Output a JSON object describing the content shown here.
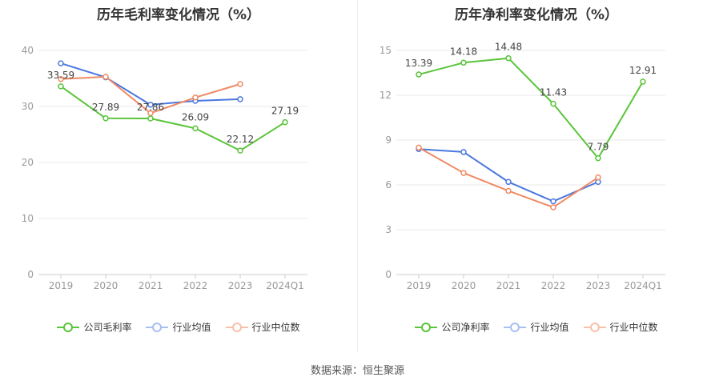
{
  "source_label": "数据来源：恒生聚源",
  "chart_data": [
    {
      "type": "line",
      "title": "历年毛利率变化情况（%）",
      "categories": [
        "2019",
        "2020",
        "2021",
        "2022",
        "2023",
        "2024Q1"
      ],
      "ylim": [
        0,
        40
      ],
      "yticks": [
        0,
        10,
        20,
        30,
        40
      ],
      "grid": true,
      "legend_position": "bottom",
      "series": [
        {
          "name": "公司毛利率",
          "color": "#5ac43a",
          "values": [
            33.59,
            27.89,
            27.86,
            26.09,
            22.12,
            27.19
          ],
          "labels": [
            "33.59",
            "27.89",
            "27.86",
            "26.09",
            "22.12",
            "27.19"
          ]
        },
        {
          "name": "行业均值",
          "color": "#4a78e0",
          "values": [
            37.7,
            35.2,
            30.3,
            31.0,
            31.3,
            null
          ]
        },
        {
          "name": "行业中位数",
          "color": "#f08a64",
          "values": [
            34.9,
            35.3,
            28.8,
            31.6,
            34.0,
            null
          ]
        }
      ]
    },
    {
      "type": "line",
      "title": "历年净利率变化情况（%）",
      "categories": [
        "2019",
        "2020",
        "2021",
        "2022",
        "2023",
        "2024Q1"
      ],
      "ylim": [
        0,
        15
      ],
      "yticks": [
        0,
        3,
        6,
        9,
        12,
        15
      ],
      "grid": true,
      "legend_position": "bottom",
      "series": [
        {
          "name": "公司净利率",
          "color": "#5ac43a",
          "values": [
            13.39,
            14.18,
            14.48,
            11.43,
            7.79,
            12.91
          ],
          "labels": [
            "13.39",
            "14.18",
            "14.48",
            "11.43",
            "7.79",
            "12.91"
          ]
        },
        {
          "name": "行业均值",
          "color": "#4a78e0",
          "values": [
            8.4,
            8.2,
            6.2,
            4.9,
            6.2,
            null
          ]
        },
        {
          "name": "行业中位数",
          "color": "#f08a64",
          "values": [
            8.5,
            6.8,
            5.6,
            4.5,
            6.5,
            null
          ]
        }
      ]
    }
  ]
}
